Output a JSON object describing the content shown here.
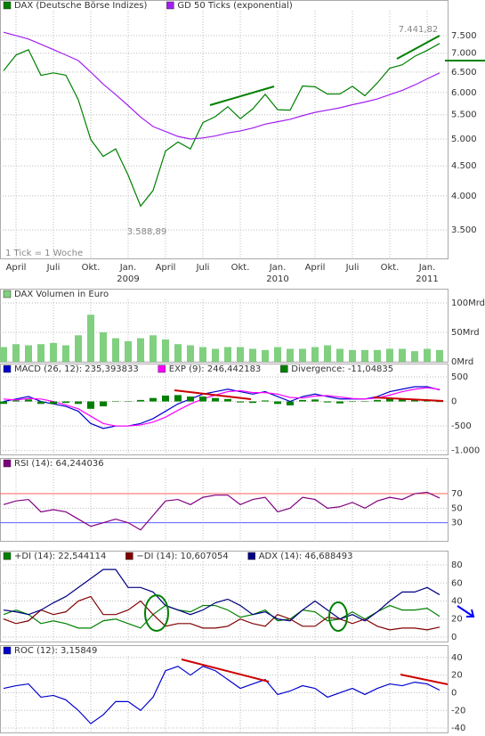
{
  "chart_data": [
    {
      "type": "line",
      "log": true,
      "grid": true,
      "categories": [
        null,
        "April",
        null,
        null,
        "Juli",
        null,
        null,
        "Okt.",
        null,
        null,
        "Jan. 2009",
        null,
        null,
        "April",
        null,
        null,
        "Juli",
        null,
        null,
        "Okt.",
        null,
        null,
        "Jan. 2010",
        null,
        null,
        "April",
        null,
        null,
        "Juli",
        null,
        null,
        "Okt.",
        null,
        null,
        "Jan. 2011",
        null
      ],
      "series": [
        {
          "name": "DAX (Deutsche Börse Indizes)",
          "color": "#008000",
          "type": "line",
          "values": [
            6535,
            6949,
            7097,
            6418,
            6479,
            6422,
            5831,
            4988,
            4669,
            4810,
            4338,
            3843,
            4085,
            4770,
            4941,
            4809,
            5332,
            5458,
            5675,
            5415,
            5625,
            5957,
            5608,
            5598,
            6154,
            6136,
            5965,
            5966,
            6148,
            5925,
            6229,
            6601,
            6688,
            6914,
            7077,
            7272
          ]
        },
        {
          "name": "GD 50 Ticks (exponential)",
          "color": "#a020f0",
          "type": "line",
          "values": [
            7600,
            7500,
            7400,
            7250,
            7100,
            6950,
            6800,
            6500,
            6200,
            5950,
            5700,
            5450,
            5250,
            5150,
            5050,
            5000,
            5020,
            5060,
            5120,
            5160,
            5220,
            5300,
            5350,
            5400,
            5480,
            5550,
            5600,
            5650,
            5720,
            5780,
            5850,
            5950,
            6050,
            6180,
            6330,
            6480
          ]
        }
      ],
      "ylim": [
        3130,
        8270
      ],
      "yticks": [
        {
          "value": 7500,
          "label": "7.500"
        },
        {
          "value": 7000,
          "label": "7.000"
        },
        {
          "value": 6500,
          "label": "6.500"
        },
        {
          "value": 6000,
          "label": "6.000"
        },
        {
          "value": 5500,
          "label": "5.500"
        },
        {
          "value": 5000,
          "label": "5.000"
        },
        {
          "value": 4500,
          "label": "4.500"
        },
        {
          "value": 4000,
          "label": "4.000"
        },
        {
          "value": 3500,
          "label": "3.500"
        }
      ],
      "annotations": [
        "7.441,82",
        "3.588,89",
        "1 Tick = 1 Woche"
      ]
    },
    {
      "type": "bar",
      "grid": true,
      "series": [
        {
          "name": "DAX Volumen in Euro",
          "color": "#80d080",
          "type": "bar",
          "values": [
            25,
            30,
            28,
            30,
            32,
            28,
            45,
            80,
            50,
            40,
            35,
            40,
            45,
            38,
            30,
            28,
            25,
            22,
            25,
            25,
            22,
            20,
            25,
            22,
            22,
            25,
            28,
            22,
            20,
            20,
            20,
            22,
            22,
            18,
            22,
            20
          ]
        }
      ],
      "ylim": [
        0,
        100
      ],
      "yticks": [
        {
          "value": 100,
          "label": "100Mrd"
        },
        {
          "value": 50,
          "label": "50Mrd"
        },
        {
          "value": 0,
          "label": "0Mrd"
        }
      ]
    },
    {
      "type": "line",
      "grid": true,
      "series": [
        {
          "name": "MACD (26, 12): 235,393833",
          "color": "#0000cc",
          "type": "line",
          "values": [
            0,
            50,
            100,
            0,
            -50,
            -100,
            -200,
            -450,
            -550,
            -500,
            -500,
            -450,
            -350,
            -200,
            -50,
            50,
            150,
            200,
            250,
            200,
            150,
            200,
            100,
            0,
            100,
            150,
            100,
            50,
            50,
            50,
            100,
            200,
            250,
            300,
            300,
            235
          ]
        },
        {
          "name": "EXP (9): 246,442183",
          "color": "#ff00ff",
          "type": "line",
          "values": [
            50,
            30,
            60,
            50,
            0,
            -70,
            -150,
            -300,
            -450,
            -500,
            -500,
            -480,
            -420,
            -320,
            -180,
            -50,
            50,
            130,
            200,
            220,
            180,
            180,
            150,
            80,
            70,
            110,
            120,
            90,
            60,
            50,
            70,
            130,
            200,
            250,
            280,
            246
          ]
        },
        {
          "name": "Divergence: -11,04835",
          "color": "#008000",
          "type": "bar",
          "values": [
            -50,
            20,
            40,
            -50,
            -50,
            -30,
            -50,
            -150,
            -100,
            0,
            0,
            30,
            70,
            120,
            130,
            100,
            100,
            70,
            50,
            -20,
            -30,
            20,
            -50,
            -80,
            30,
            40,
            -20,
            -40,
            -10,
            0,
            30,
            70,
            50,
            50,
            20,
            -11
          ]
        }
      ],
      "ylim": [
        -1080,
        700
      ],
      "yticks": [
        500,
        0,
        -500,
        {
          "value": -1000,
          "label": "-1.000"
        }
      ]
    },
    {
      "type": "line",
      "grid": true,
      "series": [
        {
          "name": "RSI (14): 64,244036",
          "color": "#800080",
          "type": "line",
          "values": [
            55,
            60,
            62,
            45,
            48,
            45,
            35,
            25,
            30,
            35,
            30,
            20,
            40,
            60,
            62,
            55,
            65,
            68,
            68,
            55,
            62,
            65,
            45,
            50,
            65,
            62,
            50,
            52,
            58,
            50,
            60,
            65,
            62,
            70,
            72,
            64
          ]
        }
      ],
      "ylim": [
        5,
        102
      ],
      "yticks": [
        70,
        50,
        30
      ],
      "hlines": [
        {
          "value": 70,
          "color": "#ff6060"
        },
        {
          "value": 30,
          "color": "#6060ff"
        }
      ]
    },
    {
      "type": "line",
      "grid": true,
      "series": [
        {
          "name": "+DI (14): 22,544114",
          "color": "#008000",
          "type": "line",
          "values": [
            25,
            30,
            25,
            15,
            18,
            15,
            10,
            10,
            18,
            20,
            15,
            10,
            25,
            35,
            30,
            28,
            35,
            35,
            30,
            22,
            25,
            30,
            18,
            20,
            30,
            28,
            18,
            20,
            28,
            20,
            28,
            35,
            30,
            30,
            32,
            23
          ]
        },
        {
          "name": "−DI (14): 10,607054",
          "color": "#800000",
          "type": "line",
          "values": [
            20,
            15,
            18,
            30,
            25,
            28,
            40,
            45,
            25,
            25,
            30,
            40,
            25,
            12,
            15,
            15,
            10,
            10,
            12,
            20,
            15,
            12,
            25,
            20,
            12,
            12,
            22,
            20,
            15,
            20,
            12,
            8,
            10,
            10,
            8,
            11
          ]
        },
        {
          "name": "ADX (14): 46,688493",
          "color": "#000080",
          "type": "line",
          "values": [
            30,
            28,
            25,
            30,
            38,
            45,
            55,
            65,
            75,
            75,
            55,
            55,
            50,
            35,
            30,
            25,
            30,
            38,
            42,
            35,
            25,
            28,
            20,
            18,
            30,
            40,
            30,
            20,
            25,
            18,
            28,
            40,
            50,
            50,
            55,
            47
          ]
        }
      ],
      "ylim": [
        -3,
        84
      ],
      "yticks": [
        80,
        60,
        40,
        20,
        0
      ]
    },
    {
      "type": "line",
      "grid": true,
      "series": [
        {
          "name": "ROC (12): 3,15849",
          "color": "#0000cc",
          "type": "line",
          "values": [
            5,
            8,
            10,
            -5,
            -3,
            -8,
            -20,
            -35,
            -25,
            -10,
            -10,
            -20,
            -5,
            25,
            30,
            20,
            30,
            25,
            15,
            5,
            10,
            15,
            -2,
            2,
            8,
            5,
            -5,
            0,
            5,
            -2,
            5,
            10,
            8,
            12,
            10,
            3
          ]
        }
      ],
      "ylim": [
        -45,
        50
      ],
      "yticks": [
        40,
        20,
        0,
        -20,
        -40
      ]
    }
  ]
}
